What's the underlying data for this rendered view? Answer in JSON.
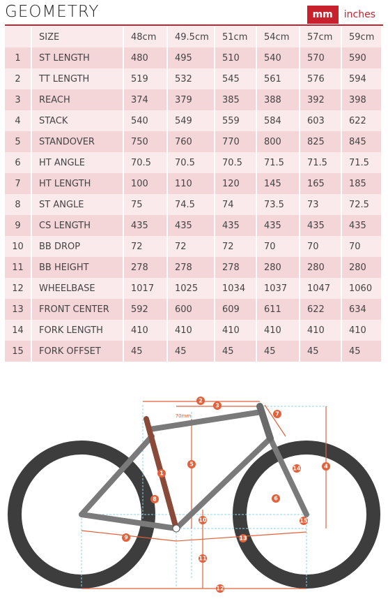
{
  "header": {
    "title": "GEOMETRY",
    "units": [
      "mm",
      "inches"
    ]
  },
  "table": {
    "columns": [
      "SIZE",
      "48cm",
      "49.5cm",
      "51cm",
      "54cm",
      "57cm",
      "59cm"
    ],
    "rows": [
      [
        1,
        "ST LENGTH",
        480,
        495,
        510,
        540,
        570,
        590
      ],
      [
        2,
        "TT LENGTH",
        519,
        532,
        545,
        561,
        576,
        594
      ],
      [
        3,
        "REACH",
        374,
        379,
        385,
        388,
        392,
        398
      ],
      [
        4,
        "STACK",
        540,
        549,
        559,
        584,
        603,
        622
      ],
      [
        5,
        "STANDOVER",
        750,
        760,
        770,
        800,
        825,
        845
      ],
      [
        6,
        "HT ANGLE",
        70.5,
        70.5,
        70.5,
        71.5,
        71.5,
        71.5
      ],
      [
        7,
        "HT LENGTH",
        100,
        110,
        120,
        145,
        165,
        185
      ],
      [
        8,
        "ST ANGLE",
        75,
        74.5,
        74,
        73.5,
        73,
        72.5
      ],
      [
        9,
        "CS LENGTH",
        435,
        435,
        435,
        435,
        435,
        435
      ],
      [
        10,
        "BB DROP",
        72,
        72,
        72,
        70,
        70,
        70
      ],
      [
        11,
        "BB HEIGHT",
        278,
        278,
        278,
        280,
        280,
        280
      ],
      [
        12,
        "WHEELBASE",
        1017,
        1025,
        1034,
        1037,
        1047,
        1060
      ],
      [
        13,
        "FRONT CENTER",
        592,
        600,
        609,
        611,
        622,
        634
      ],
      [
        14,
        "FORK LENGTH",
        410,
        410,
        410,
        410,
        410,
        410
      ],
      [
        15,
        "FORK OFFSET",
        45,
        45,
        45,
        45,
        45,
        45
      ]
    ]
  },
  "diagram": {
    "markers": [
      1,
      2,
      3,
      4,
      5,
      6,
      7,
      8,
      9,
      10,
      11,
      12,
      13,
      14,
      15
    ],
    "note": "70mm"
  }
}
